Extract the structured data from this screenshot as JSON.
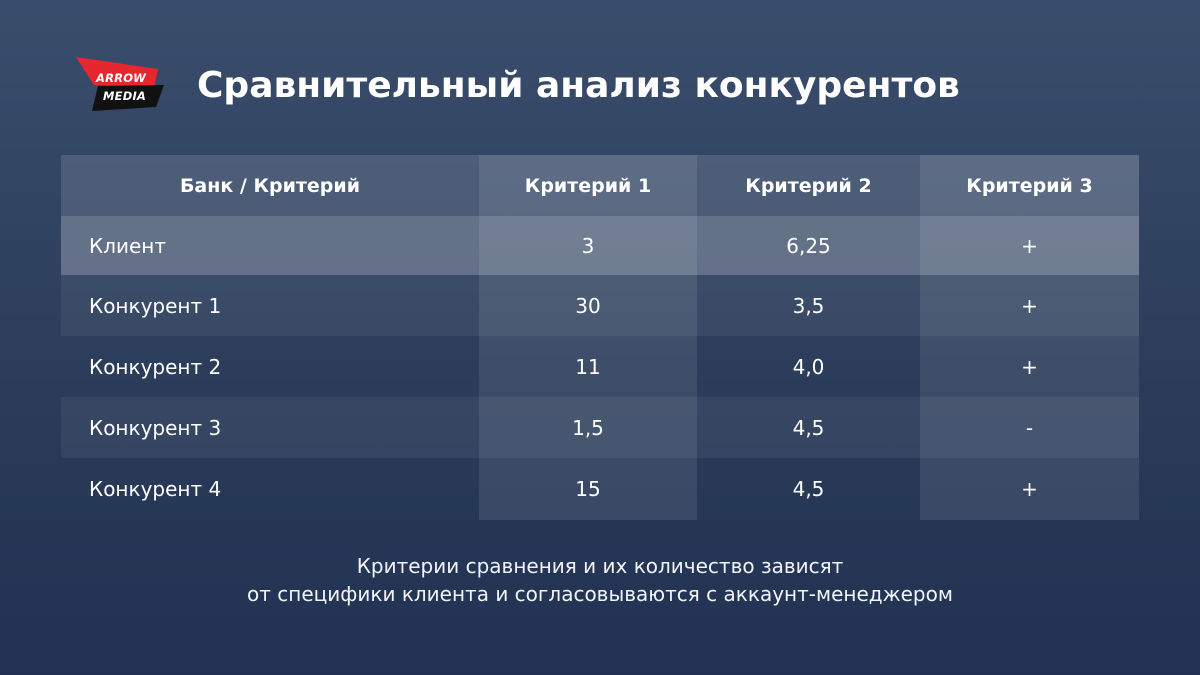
{
  "logo": {
    "line1": "ARROW",
    "line2": "MEDIA",
    "colors": {
      "red": "#e8262f",
      "black": "#111111"
    }
  },
  "title": "Сравнительный анализ конкурентов",
  "table": {
    "headers": [
      "Банк / Критерий",
      "Критерий 1",
      "Критерий 2",
      "Критерий 3"
    ],
    "rows": [
      {
        "name": "Клиент",
        "c1": "3",
        "c2": "6,25",
        "c3": "+"
      },
      {
        "name": "Конкурент 1",
        "c1": "30",
        "c2": "3,5",
        "c3": "+"
      },
      {
        "name": "Конкурент 2",
        "c1": "11",
        "c2": "4,0",
        "c3": "+"
      },
      {
        "name": "Конкурент 3",
        "c1": "1,5",
        "c2": "4,5",
        "c3": "-"
      },
      {
        "name": "Конкурент 4",
        "c1": "15",
        "c2": "4,5",
        "c3": "+"
      }
    ]
  },
  "footnote": {
    "line1": "Критерии сравнения и их количество зависят",
    "line2": "от специфики клиента и согласовываются с аккаунт-менеджером"
  },
  "colors": {
    "background_top": "#3a4d6c",
    "background_bottom": "#213152",
    "text": "#ffffff"
  }
}
